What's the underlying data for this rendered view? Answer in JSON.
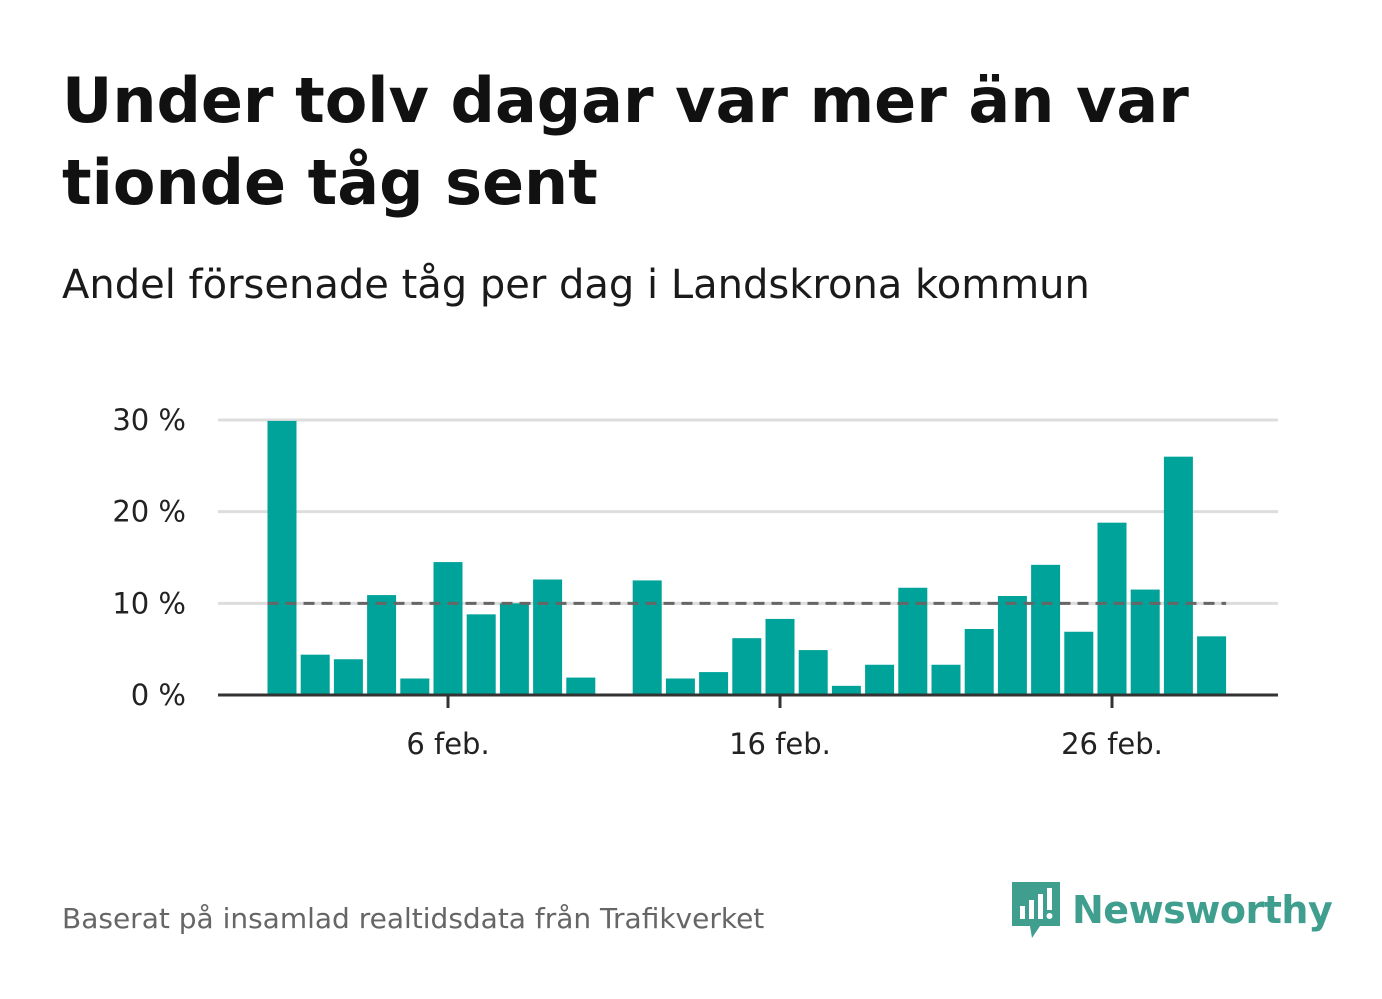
{
  "title": "Under tolv dagar var mer än var tionde tåg sent",
  "subtitle": "Andel försenade tåg per dag i Landskrona kommun",
  "source": "Baserat på insamlad realtidsdata från Trafikverket",
  "logo": {
    "text": "Newsworthy",
    "icon": "newsworthy-logo-icon"
  },
  "colors": {
    "bar": "#00a39a",
    "reference_line": "#666666",
    "grid": "#dddddd",
    "axis": "#333333",
    "brand": "#3f9e8e"
  },
  "chart_data": {
    "type": "bar",
    "title": "Under tolv dagar var mer än var tionde tåg sent",
    "subtitle": "Andel försenade tåg per dag i Landskrona kommun",
    "xlabel": "",
    "ylabel": "",
    "x_dates": [
      "1 feb.",
      "2 feb.",
      "3 feb.",
      "4 feb.",
      "5 feb.",
      "6 feb.",
      "7 feb.",
      "8 feb.",
      "9 feb.",
      "10 feb.",
      "11 feb.",
      "12 feb.",
      "13 feb.",
      "14 feb.",
      "15 feb.",
      "16 feb.",
      "17 feb.",
      "18 feb.",
      "19 feb.",
      "20 feb.",
      "21 feb.",
      "22 feb.",
      "23 feb.",
      "24 feb.",
      "25 feb.",
      "26 feb.",
      "27 feb.",
      "28 feb.",
      "29 feb."
    ],
    "values": [
      29.9,
      4.4,
      3.9,
      10.9,
      1.8,
      14.5,
      8.8,
      10.0,
      12.6,
      1.9,
      null,
      12.5,
      1.8,
      2.5,
      6.2,
      8.3,
      4.9,
      1.0,
      3.3,
      11.7,
      3.3,
      7.2,
      10.8,
      14.2,
      6.9,
      18.8,
      11.5,
      26.0,
      6.4
    ],
    "reference_line": 10,
    "ylim": [
      0,
      30
    ],
    "yticks": [
      0,
      10,
      20,
      30
    ],
    "ytick_labels": [
      "0 %",
      "10 %",
      "20 %",
      "30 %"
    ],
    "xtick_labels": [
      "6 feb.",
      "16 feb.",
      "26 feb."
    ],
    "xtick_index": [
      5,
      15,
      25
    ],
    "grid": true,
    "legend": "none"
  }
}
